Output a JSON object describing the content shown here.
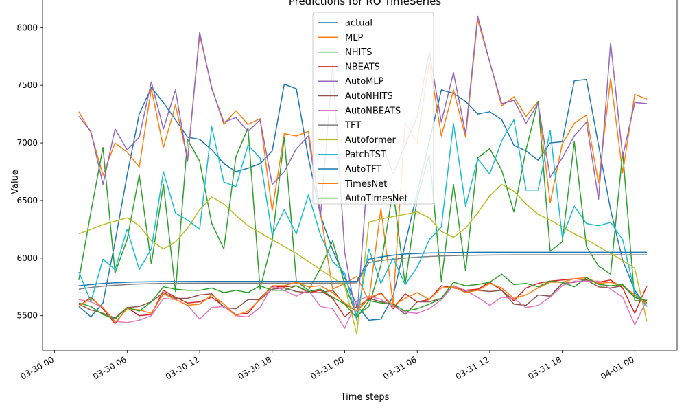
{
  "chart_data": {
    "type": "line",
    "title": "Predictions for RO TimeSeries",
    "xlabel": "Time steps",
    "ylabel": "Value",
    "ylim": [
      5200,
      8300
    ],
    "y_ticks": [
      5500,
      6000,
      6500,
      7000,
      7500,
      8000
    ],
    "x_ticks": [
      {
        "label": "03-30 00",
        "hours": 0
      },
      {
        "label": "03-30 06",
        "hours": 6
      },
      {
        "label": "03-30 12",
        "hours": 12
      },
      {
        "label": "03-30 18",
        "hours": 18
      },
      {
        "label": "03-31 00",
        "hours": 24
      },
      {
        "label": "03-31 06",
        "hours": 30
      },
      {
        "label": "03-31 12",
        "hours": 36
      },
      {
        "label": "03-31 18",
        "hours": 42
      },
      {
        "label": "04-01 00",
        "hours": 48
      }
    ],
    "xlim_hours": [
      -1.0,
      51.5
    ],
    "x_hours": [
      2,
      3,
      4,
      5,
      6,
      7,
      8,
      9,
      10,
      11,
      12,
      13,
      14,
      15,
      16,
      17,
      18,
      19,
      20,
      21,
      22,
      23,
      24,
      25,
      26,
      27,
      28,
      29,
      30,
      31,
      32,
      33,
      34,
      35,
      36,
      37,
      38,
      39,
      40,
      41,
      42,
      43,
      44,
      45,
      46,
      47,
      48,
      49
    ],
    "legend_position": "upper-center",
    "series": [
      {
        "name": "actual",
        "color": "#1f77b4",
        "values": [
          5580,
          5490,
          5610,
          6140,
          6720,
          7250,
          7480,
          7350,
          7200,
          7050,
          7030,
          6940,
          6820,
          6750,
          6780,
          6820,
          6930,
          7510,
          7470,
          6870,
          6370,
          6070,
          5830,
          5590,
          5460,
          5470,
          5670,
          6120,
          6570,
          7010,
          7460,
          7430,
          7360,
          7250,
          7270,
          7200,
          6980,
          6930,
          6850,
          7000,
          7010,
          7540,
          7550,
          6980,
          6420,
          5980,
          5720,
          5580
        ]
      },
      {
        "name": "MLP",
        "color": "#ff7f0e",
        "values": [
          7270,
          7090,
          6720,
          7000,
          6920,
          6790,
          7470,
          6960,
          7330,
          6860,
          7940,
          7480,
          7160,
          7280,
          7160,
          7210,
          6410,
          7080,
          7060,
          7100,
          6390,
          5730,
          5780,
          5840,
          5630,
          6430,
          5600,
          7180,
          7000,
          7710,
          7060,
          7460,
          7050,
          8070,
          7700,
          7320,
          7400,
          7230,
          7360,
          6480,
          6990,
          7170,
          7240,
          6650,
          7560,
          6740,
          7420,
          7380
        ]
      },
      {
        "name": "NHITS",
        "color": "#2ca02c",
        "values": [
          5810,
          6400,
          6960,
          5870,
          6160,
          6720,
          5950,
          6640,
          5710,
          7030,
          6840,
          6300,
          6080,
          6880,
          7130,
          5730,
          6150,
          7050,
          5800,
          5720,
          5910,
          6150,
          5770,
          5500,
          5580,
          5940,
          6590,
          5770,
          6520,
          6900,
          5800,
          6640,
          5890,
          6870,
          6950,
          6760,
          6400,
          6940,
          7360,
          6060,
          6140,
          7010,
          6100,
          5930,
          5860,
          6920,
          5630,
          5630
        ]
      },
      {
        "name": "NBEATS",
        "color": "#d62728",
        "values": [
          5580,
          5660,
          5560,
          5430,
          5570,
          5500,
          5510,
          5720,
          5660,
          5610,
          5620,
          5660,
          5580,
          5510,
          5520,
          5650,
          5750,
          5750,
          5760,
          5700,
          5720,
          5650,
          5490,
          5580,
          5640,
          5700,
          5560,
          5690,
          5620,
          5640,
          5760,
          5740,
          5720,
          5730,
          5790,
          5720,
          5630,
          5740,
          5780,
          5800,
          5810,
          5820,
          5810,
          5790,
          5810,
          5740,
          5520,
          5760
        ]
      },
      {
        "name": "AutoMLP",
        "color": "#9467bd",
        "values": [
          7230,
          7100,
          6640,
          7120,
          6940,
          7050,
          7530,
          7120,
          7460,
          6840,
          7960,
          7470,
          7180,
          7220,
          7100,
          7200,
          6640,
          6750,
          6950,
          7060,
          6360,
          7670,
          6050,
          5460,
          6880,
          7020,
          6730,
          6980,
          7230,
          7790,
          7180,
          7610,
          7080,
          8100,
          7700,
          7340,
          7370,
          7170,
          7340,
          6700,
          6870,
          7060,
          7180,
          6510,
          7870,
          6880,
          7350,
          7340
        ]
      },
      {
        "name": "AutoNHITS",
        "color": "#8c564b",
        "values": [
          5600,
          5550,
          5520,
          5480,
          5570,
          5580,
          5620,
          5700,
          5650,
          5650,
          5680,
          5690,
          5570,
          5560,
          5640,
          5640,
          5730,
          5740,
          5710,
          5700,
          5700,
          5720,
          5600,
          5540,
          5650,
          5620,
          5600,
          5510,
          5620,
          5620,
          5650,
          5760,
          5710,
          5720,
          5710,
          5720,
          5600,
          5590,
          5680,
          5670,
          5780,
          5790,
          5810,
          5750,
          5740,
          5760,
          5660,
          5610
        ]
      },
      {
        "name": "AutoNBEATS",
        "color": "#e377c2",
        "values": [
          5640,
          5620,
          5570,
          5450,
          5440,
          5460,
          5500,
          5650,
          5640,
          5590,
          5470,
          5570,
          5580,
          5500,
          5490,
          5570,
          5760,
          5720,
          5670,
          5720,
          5580,
          5560,
          5390,
          5630,
          5670,
          5640,
          5580,
          5530,
          5520,
          5560,
          5640,
          5760,
          5720,
          5660,
          5590,
          5660,
          5650,
          5570,
          5590,
          5660,
          5760,
          5800,
          5800,
          5800,
          5730,
          5660,
          5420,
          5640
        ]
      },
      {
        "name": "TFT",
        "color": "#7f7f7f",
        "values": [
          5730,
          5745,
          5756,
          5764,
          5770,
          5775,
          5778,
          5780,
          5781,
          5782,
          5782,
          5783,
          5783,
          5783,
          5783,
          5783,
          5783,
          5783,
          5783,
          5783,
          5783,
          5783,
          5783,
          5785,
          5960,
          5980,
          5990,
          6000,
          6008,
          6014,
          6018,
          6021,
          6023,
          6025,
          6026,
          6027,
          6028,
          6028,
          6028,
          6028,
          6028,
          6028,
          6028,
          6028,
          6028,
          6028,
          6028,
          6028
        ]
      },
      {
        "name": "Autoformer",
        "color": "#bcbd22",
        "values": [
          6210,
          6250,
          6290,
          6320,
          6350,
          6280,
          6150,
          6080,
          6140,
          6260,
          6420,
          6530,
          6470,
          6370,
          6280,
          6220,
          6160,
          6100,
          6040,
          5970,
          5900,
          5830,
          5760,
          5340,
          6310,
          6340,
          6360,
          6380,
          6400,
          6350,
          6230,
          6180,
          6260,
          6390,
          6540,
          6640,
          6580,
          6470,
          6380,
          6330,
          6270,
          6210,
          6160,
          6100,
          6040,
          5980,
          5910,
          5450
        ]
      },
      {
        "name": "PatchTST",
        "color": "#17becf",
        "values": [
          5880,
          5620,
          5990,
          5900,
          6250,
          5900,
          6080,
          6750,
          6390,
          6330,
          6250,
          7140,
          6660,
          6620,
          6980,
          6870,
          6200,
          6420,
          6210,
          6550,
          6200,
          5970,
          5870,
          5470,
          6080,
          5780,
          6000,
          5770,
          5920,
          6160,
          6270,
          7170,
          6450,
          6860,
          6730,
          7020,
          7200,
          6590,
          6590,
          7110,
          6180,
          6450,
          6300,
          6280,
          6310,
          6160,
          5700,
          5580
        ]
      },
      {
        "name": "AutoTFT",
        "color": "#1f77b4",
        "values": [
          5760,
          5770,
          5780,
          5786,
          5790,
          5793,
          5795,
          5796,
          5797,
          5797,
          5798,
          5798,
          5798,
          5798,
          5798,
          5798,
          5798,
          5798,
          5798,
          5798,
          5798,
          5798,
          5798,
          5798,
          5990,
          6010,
          6025,
          6035,
          6040,
          6044,
          6046,
          6048,
          6049,
          6050,
          6050,
          6050,
          6050,
          6050,
          6050,
          6050,
          6050,
          6050,
          6050,
          6050,
          6050,
          6050,
          6050,
          6050
        ]
      },
      {
        "name": "TimesNet",
        "color": "#ff7f0e",
        "values": [
          5580,
          5650,
          5570,
          5440,
          5560,
          5550,
          5520,
          5690,
          5640,
          5590,
          5600,
          5680,
          5600,
          5500,
          5540,
          5640,
          5760,
          5760,
          5790,
          5750,
          5760,
          5700,
          5610,
          5540,
          5660,
          5690,
          5590,
          5650,
          5700,
          5640,
          5740,
          5750,
          5700,
          5720,
          5780,
          5740,
          5650,
          5680,
          5740,
          5790,
          5790,
          5820,
          5830,
          5780,
          5790,
          5760,
          5680,
          5600
        ]
      },
      {
        "name": "AutoTimesNet",
        "color": "#2ca02c",
        "values": [
          5610,
          5580,
          5510,
          5470,
          5570,
          5540,
          5620,
          5750,
          5730,
          5720,
          5720,
          5740,
          5700,
          5720,
          5700,
          5760,
          5720,
          5720,
          5760,
          5710,
          5730,
          5660,
          5600,
          5480,
          5630,
          5610,
          5600,
          5540,
          5560,
          5600,
          5650,
          5790,
          5760,
          5770,
          5790,
          5860,
          5770,
          5780,
          5750,
          5800,
          5790,
          5750,
          5830,
          5770,
          5760,
          5770,
          5660,
          5630
        ]
      }
    ]
  }
}
